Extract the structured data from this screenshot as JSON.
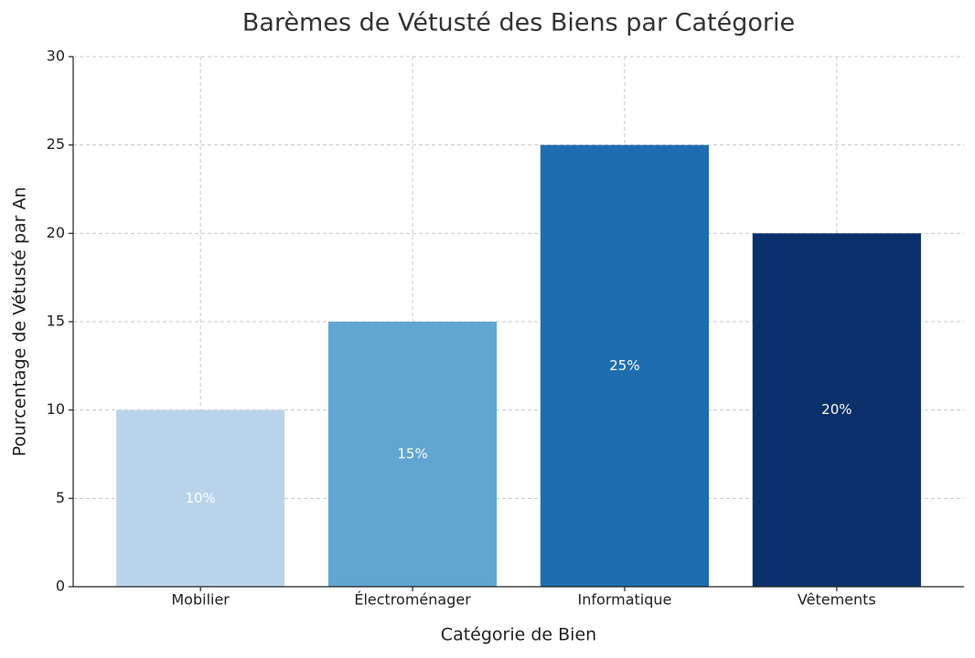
{
  "chart_data": {
    "type": "bar",
    "title": "Barèmes de Vétusté des Biens par Catégorie",
    "x_label": "Catégorie de Bien",
    "y_label": "Pourcentage de Vétusté par An",
    "categories": [
      "Mobilier",
      "Électroménager",
      "Informatique",
      "Vêtements"
    ],
    "values": [
      10,
      15,
      25,
      20
    ],
    "value_labels": [
      "10%",
      "15%",
      "25%",
      "20%"
    ],
    "colors": [
      "#b9d4ea",
      "#61a5d1",
      "#1f6db1",
      "#0a306b"
    ],
    "ylim": [
      0,
      30
    ],
    "yticks": [
      0,
      5,
      10,
      15,
      20,
      25,
      30
    ],
    "grid": true
  }
}
